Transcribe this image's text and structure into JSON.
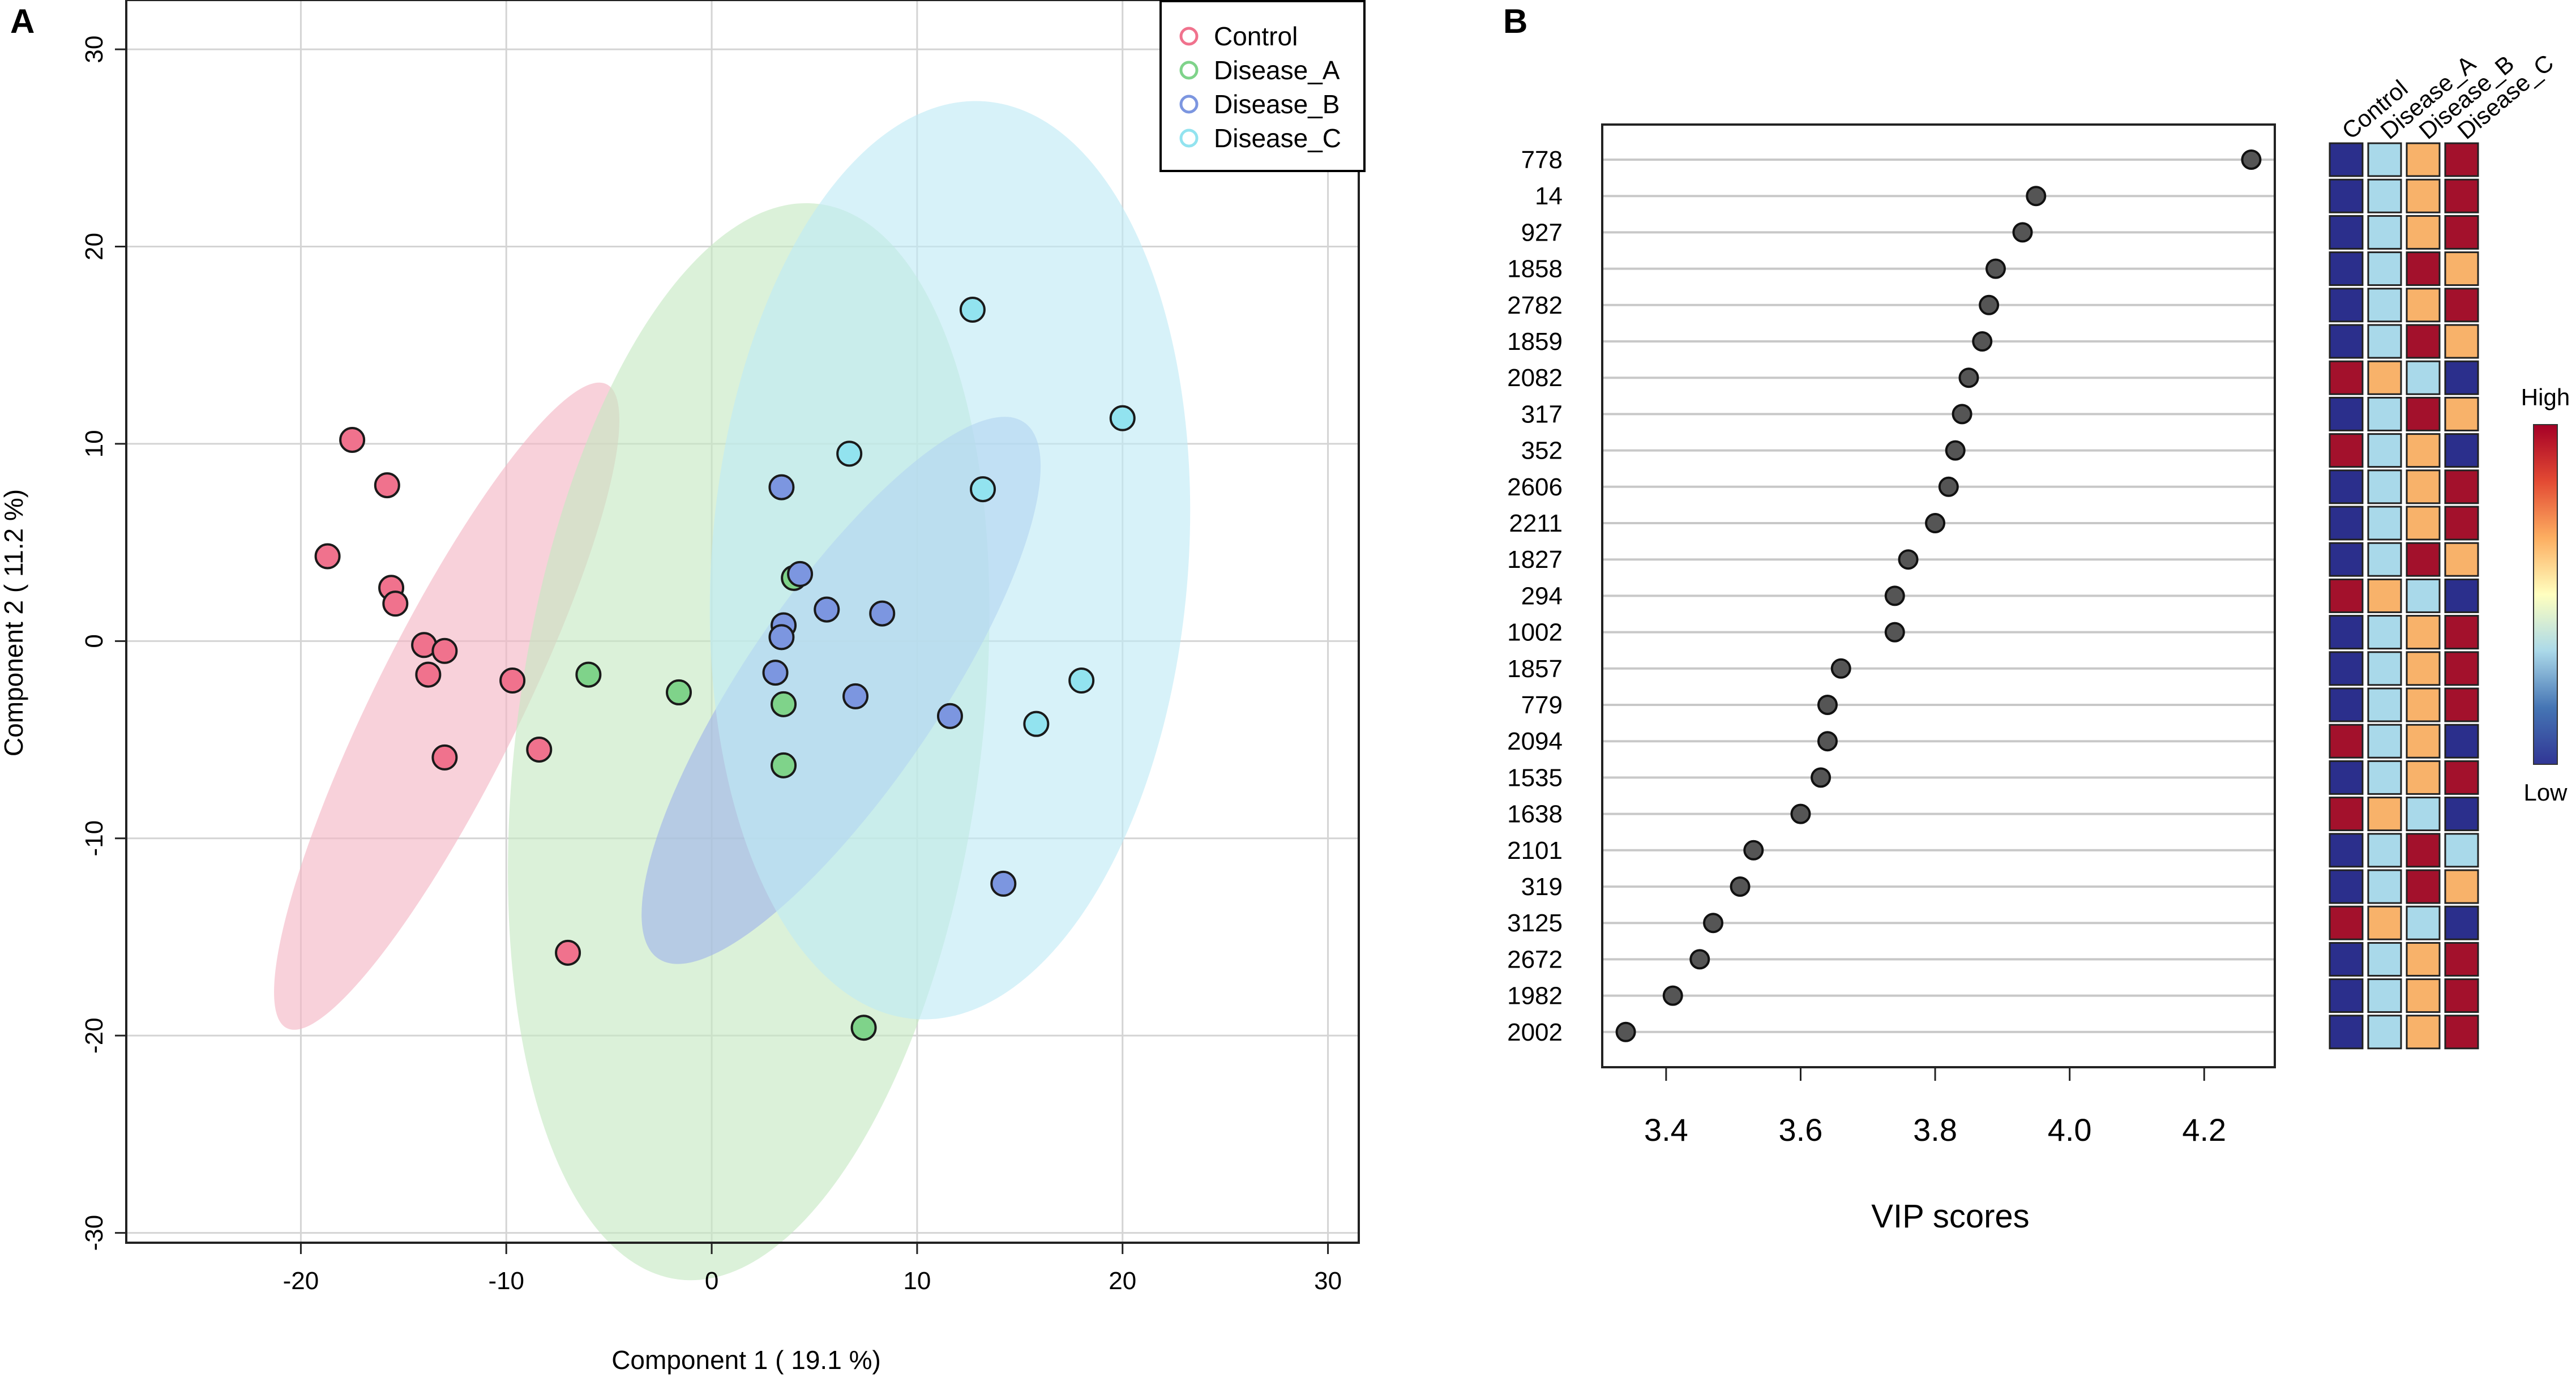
{
  "panels": {
    "a_label": "A",
    "b_label": "B"
  },
  "chart_data": [
    {
      "type": "scatter",
      "title": "",
      "xlabel": "Component 1 ( 19.1 %)",
      "ylabel": "Component 2 ( 11.2 %)",
      "xlim": [
        -28.5,
        31.5
      ],
      "ylim": [
        -30.5,
        32.5
      ],
      "xticks": [
        -20,
        -10,
        0,
        10,
        20,
        30
      ],
      "yticks": [
        -30,
        -20,
        -10,
        0,
        10,
        20,
        30
      ],
      "tick_labels_x": [
        "-20",
        "-10",
        "0",
        "10",
        "20",
        "30"
      ],
      "tick_labels_y": [
        "-30",
        "-20",
        "-10",
        "0",
        "10",
        "20",
        "30"
      ],
      "grid": true,
      "legend_position": "top-right",
      "series": [
        {
          "name": "Control",
          "color": "#f0728d",
          "ellipse_color": "#f4b4c4",
          "points": [
            [
              -17.5,
              10.2
            ],
            [
              -15.8,
              7.9
            ],
            [
              -18.7,
              4.3
            ],
            [
              -15.6,
              2.7
            ],
            [
              -15.4,
              1.9
            ],
            [
              -14,
              -0.2
            ],
            [
              -13,
              -0.5
            ],
            [
              -13.8,
              -1.7
            ],
            [
              -9.7,
              -2
            ],
            [
              -13,
              -5.9
            ],
            [
              -8.4,
              -5.5
            ],
            [
              -7,
              -15.8
            ]
          ],
          "ellipse": {
            "center": [
              -12.9,
              -3.3
            ],
            "semi_major": 17.5,
            "semi_minor": 3.55,
            "angle_deg": 63.6
          }
        },
        {
          "name": "Disease_A",
          "color": "#7fd38a",
          "ellipse_color": "#c5e8c2",
          "points": [
            [
              -6,
              -1.7
            ],
            [
              -1.6,
              -2.6
            ],
            [
              3.5,
              -3.2
            ],
            [
              3.5,
              -6.3
            ],
            [
              4,
              3.2
            ],
            [
              7.4,
              -19.6
            ]
          ],
          "ellipse": {
            "center": [
              1.8,
              -5.1
            ],
            "semi_major": 26.4,
            "semi_minor": 11.3,
            "angle_deg": 82.5
          }
        },
        {
          "name": "Disease_B",
          "color": "#7c96e0",
          "ellipse_color": "#9fb3ea",
          "points": [
            [
              3.4,
              7.8
            ],
            [
              4.3,
              3.4
            ],
            [
              5.6,
              1.6
            ],
            [
              8.3,
              1.4
            ],
            [
              3.5,
              0.8
            ],
            [
              3.4,
              0.2
            ],
            [
              3.1,
              -1.6
            ],
            [
              7,
              -2.8
            ],
            [
              11.6,
              -3.8
            ],
            [
              14.2,
              -12.3
            ]
          ],
          "ellipse": {
            "center": [
              6.3,
              -2.5
            ],
            "semi_major": 15.8,
            "semi_minor": 4.7,
            "angle_deg": 55.7
          }
        },
        {
          "name": "Disease_C",
          "color": "#92e3ef",
          "ellipse_color": "#bfeaf5",
          "points": [
            [
              12.7,
              16.8
            ],
            [
              20,
              11.3
            ],
            [
              6.7,
              9.5
            ],
            [
              13.2,
              7.7
            ],
            [
              18,
              -2
            ],
            [
              15.8,
              -4.2
            ]
          ],
          "ellipse": {
            "center": [
              11.6,
              4.1
            ],
            "semi_major": 22.4,
            "semi_minor": 11.6,
            "angle_deg": 85.6
          }
        }
      ]
    },
    {
      "type": "dot",
      "xlabel": "VIP scores",
      "xlim": [
        3.305,
        4.305
      ],
      "xticks": [
        3.4,
        3.6,
        3.8,
        4.0,
        4.2
      ],
      "tick_labels_x": [
        "3.4",
        "3.6",
        "3.8",
        "4.0",
        "4.2"
      ],
      "features": [
        "778",
        "14",
        "927",
        "1858",
        "2782",
        "1859",
        "2082",
        "317",
        "352",
        "2606",
        "2211",
        "1827",
        "294",
        "1002",
        "1857",
        "779",
        "2094",
        "1535",
        "1638",
        "2101",
        "319",
        "3125",
        "2672",
        "1982",
        "2002"
      ],
      "values": [
        4.27,
        3.95,
        3.93,
        3.89,
        3.88,
        3.87,
        3.85,
        3.84,
        3.83,
        3.82,
        3.8,
        3.76,
        3.74,
        3.74,
        3.66,
        3.64,
        3.64,
        3.63,
        3.6,
        3.53,
        3.51,
        3.47,
        3.45,
        3.41,
        3.34
      ],
      "heatmap": {
        "groups": [
          "Control",
          "Disease_A",
          "Disease_B",
          "Disease_C"
        ],
        "levels": [
          [
            "low",
            "midlow",
            "midhigh",
            "high"
          ],
          [
            "low",
            "midlow",
            "midhigh",
            "high"
          ],
          [
            "low",
            "midlow",
            "midhigh",
            "high"
          ],
          [
            "low",
            "midlow",
            "high",
            "midhigh"
          ],
          [
            "low",
            "midlow",
            "midhigh",
            "high"
          ],
          [
            "low",
            "midlow",
            "high",
            "midhigh"
          ],
          [
            "high",
            "midhigh",
            "midlow",
            "low"
          ],
          [
            "low",
            "midlow",
            "high",
            "midhigh"
          ],
          [
            "high",
            "midlow",
            "midhigh",
            "low"
          ],
          [
            "low",
            "midlow",
            "midhigh",
            "high"
          ],
          [
            "low",
            "midlow",
            "midhigh",
            "high"
          ],
          [
            "low",
            "midlow",
            "high",
            "midhigh"
          ],
          [
            "high",
            "midhigh",
            "midlow",
            "low"
          ],
          [
            "low",
            "midlow",
            "midhigh",
            "high"
          ],
          [
            "low",
            "midlow",
            "midhigh",
            "high"
          ],
          [
            "low",
            "midlow",
            "midhigh",
            "high"
          ],
          [
            "high",
            "midlow",
            "midhigh",
            "low"
          ],
          [
            "low",
            "midlow",
            "midhigh",
            "high"
          ],
          [
            "high",
            "midhigh",
            "midlow",
            "low"
          ],
          [
            "low",
            "midlow",
            "high",
            "midlow"
          ],
          [
            "low",
            "midlow",
            "high",
            "midhigh"
          ],
          [
            "high",
            "midhigh",
            "midlow",
            "low"
          ],
          [
            "low",
            "midlow",
            "midhigh",
            "high"
          ],
          [
            "low",
            "midlow",
            "midhigh",
            "high"
          ],
          [
            "low",
            "midlow",
            "midhigh",
            "high"
          ]
        ],
        "level_colors": {
          "low": "#2b2f8c",
          "midlow": "#a9d9ea",
          "midhigh": "#f8b26a",
          "high": "#a3112c"
        },
        "legend_high": "High",
        "legend_low": "Low",
        "gradient_colors": [
          "#a50026",
          "#e34a33",
          "#fdae61",
          "#ffffbf",
          "#abd9e9",
          "#4575b4",
          "#313695"
        ]
      }
    }
  ]
}
